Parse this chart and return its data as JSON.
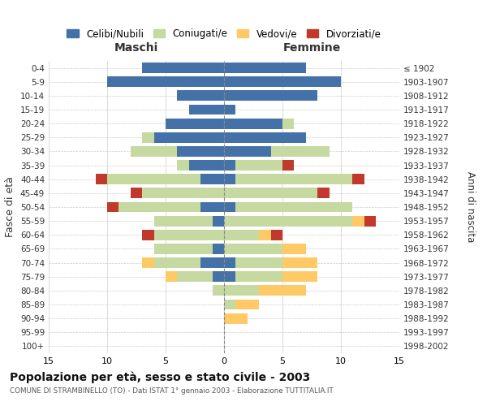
{
  "age_groups": [
    "0-4",
    "5-9",
    "10-14",
    "15-19",
    "20-24",
    "25-29",
    "30-34",
    "35-39",
    "40-44",
    "45-49",
    "50-54",
    "55-59",
    "60-64",
    "65-69",
    "70-74",
    "75-79",
    "80-84",
    "85-89",
    "90-94",
    "95-99",
    "100+"
  ],
  "birth_years": [
    "1998-2002",
    "1993-1997",
    "1988-1992",
    "1983-1987",
    "1978-1982",
    "1973-1977",
    "1968-1972",
    "1963-1967",
    "1958-1962",
    "1953-1957",
    "1948-1952",
    "1943-1947",
    "1938-1942",
    "1933-1937",
    "1928-1932",
    "1923-1927",
    "1918-1922",
    "1913-1917",
    "1908-1912",
    "1903-1907",
    "≤ 1902"
  ],
  "maschi": {
    "celibi": [
      7,
      10,
      4,
      3,
      5,
      6,
      4,
      3,
      2,
      0,
      2,
      1,
      0,
      1,
      2,
      1,
      0,
      0,
      0,
      0,
      0
    ],
    "coniugati": [
      0,
      0,
      0,
      0,
      0,
      1,
      4,
      1,
      8,
      7,
      7,
      5,
      6,
      5,
      4,
      3,
      1,
      0,
      0,
      0,
      0
    ],
    "vedovi": [
      0,
      0,
      0,
      0,
      0,
      0,
      0,
      0,
      0,
      0,
      0,
      0,
      0,
      0,
      1,
      1,
      0,
      0,
      0,
      0,
      0
    ],
    "divorziati": [
      0,
      0,
      0,
      0,
      0,
      0,
      0,
      0,
      1,
      1,
      1,
      0,
      1,
      0,
      0,
      0,
      0,
      0,
      0,
      0,
      0
    ]
  },
  "femmine": {
    "nubili": [
      7,
      10,
      8,
      1,
      5,
      7,
      4,
      1,
      1,
      0,
      1,
      0,
      0,
      0,
      1,
      1,
      0,
      0,
      0,
      0,
      0
    ],
    "coniugate": [
      0,
      0,
      0,
      0,
      1,
      0,
      5,
      4,
      10,
      8,
      10,
      11,
      3,
      5,
      4,
      4,
      3,
      1,
      0,
      0,
      0
    ],
    "vedove": [
      0,
      0,
      0,
      0,
      0,
      0,
      0,
      0,
      0,
      0,
      0,
      1,
      1,
      2,
      3,
      3,
      4,
      2,
      2,
      0,
      0
    ],
    "divorziate": [
      0,
      0,
      0,
      0,
      0,
      0,
      0,
      1,
      1,
      1,
      0,
      1,
      1,
      0,
      0,
      0,
      0,
      0,
      0,
      0,
      0
    ]
  },
  "colors": {
    "celibi": "#4472a8",
    "coniugati": "#c5d9a0",
    "vedovi": "#ffc966",
    "divorziati": "#c0392b"
  },
  "xlim": 15,
  "title": "Popolazione per età, sesso e stato civile - 2003",
  "subtitle": "COMUNE DI STRAMBINELLO (TO) - Dati ISTAT 1° gennaio 2003 - Elaborazione TUTTITALIA.IT",
  "ylabel_left": "Fasce di età",
  "ylabel_right": "Anni di nascita",
  "xlabel_maschi": "Maschi",
  "xlabel_femmine": "Femmine"
}
